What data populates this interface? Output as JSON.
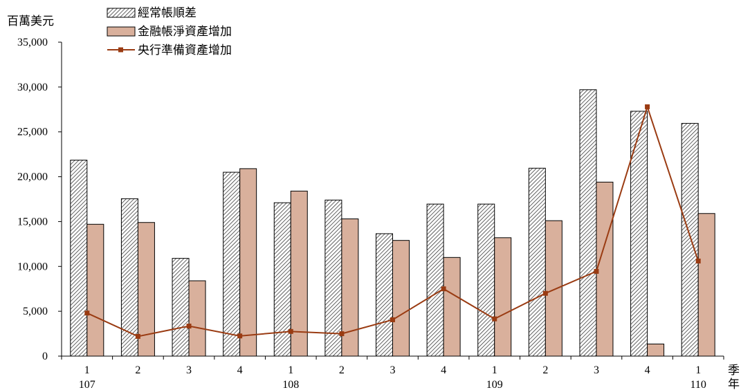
{
  "chart_data": {
    "type": "bar",
    "ylabel": "百萬美元",
    "xlabel_quarter": "季",
    "xlabel_year": "年",
    "ylim": [
      0,
      35000
    ],
    "yticks": [
      0,
      5000,
      10000,
      15000,
      20000,
      25000,
      30000,
      35000
    ],
    "ytick_labels": [
      "0",
      "5,000",
      "10,000",
      "15,000",
      "20,000",
      "25,000",
      "30,000",
      "35,000"
    ],
    "categories": [
      "1",
      "2",
      "3",
      "4",
      "1",
      "2",
      "3",
      "4",
      "1",
      "2",
      "3",
      "4",
      "1"
    ],
    "year_labels": [
      {
        "index": 0,
        "label": "107"
      },
      {
        "index": 4,
        "label": "108"
      },
      {
        "index": 8,
        "label": "109"
      },
      {
        "index": 12,
        "label": "110"
      }
    ],
    "legend_position": "top-left",
    "grid": false,
    "series": [
      {
        "name": "經常帳順差",
        "kind": "bar",
        "pattern": "hatch",
        "values": [
          21850,
          17550,
          10900,
          20500,
          17100,
          17400,
          13650,
          16950,
          16950,
          20950,
          29700,
          27300,
          25950
        ]
      },
      {
        "name": "金融帳淨資產增加",
        "kind": "bar",
        "color": "#d9b09c",
        "values": [
          14700,
          14900,
          8400,
          20900,
          18400,
          15300,
          12900,
          11000,
          13200,
          15100,
          19400,
          1350,
          15900
        ]
      },
      {
        "name": "央行準備資產增加",
        "kind": "line",
        "color": "#9a3b12",
        "values": [
          4800,
          2200,
          3350,
          2250,
          2750,
          2500,
          4050,
          7500,
          4150,
          7000,
          9450,
          27800,
          10600
        ]
      }
    ]
  }
}
